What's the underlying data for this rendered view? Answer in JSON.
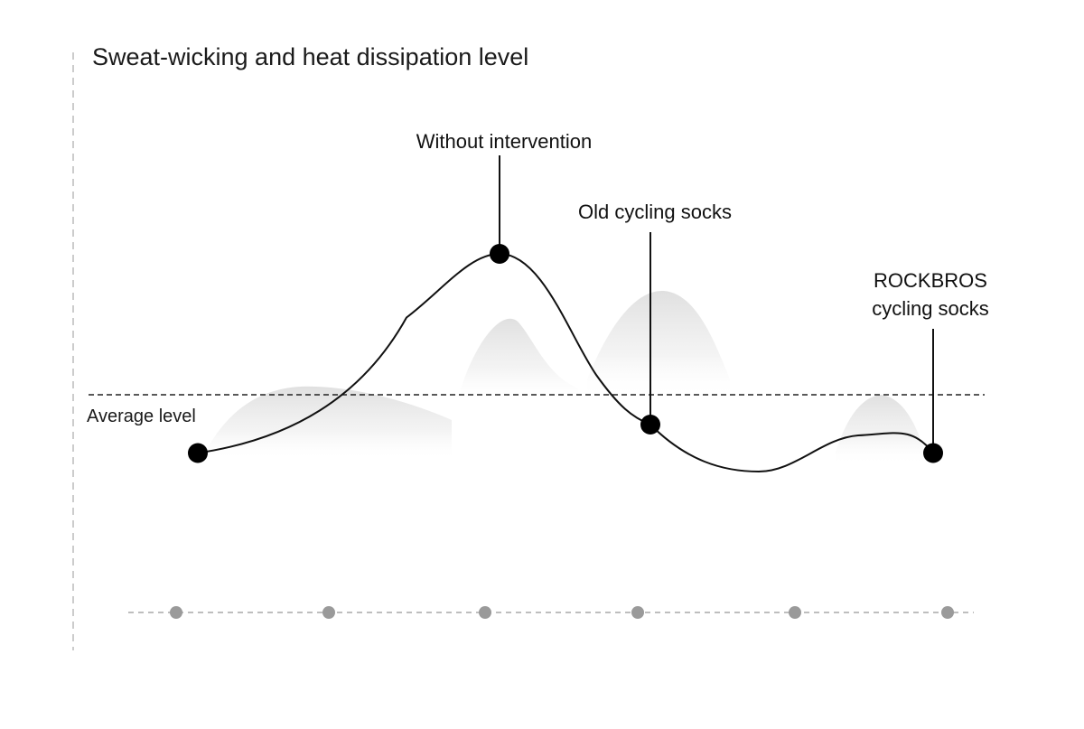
{
  "chart_data": {
    "type": "line",
    "title": "Sweat-wicking and heat dissipation level",
    "reference_line": {
      "label": "Average level",
      "style": "dashed"
    },
    "series": [
      {
        "values": [
          0.33,
          0.82,
          0.4,
          0.33
        ]
      }
    ],
    "annotations": [
      {
        "point": 1,
        "lines": [
          "Without intervention"
        ]
      },
      {
        "point": 2,
        "lines": [
          "Old cycling socks"
        ]
      },
      {
        "point": 3,
        "lines": [
          "ROCKBROS",
          "cycling socks"
        ]
      }
    ],
    "x_axis": {
      "style": "dashed",
      "tick_count": 6,
      "tick_color": "#9a9a9a"
    },
    "y_axis": {
      "style": "dashed",
      "color": "#bbbbbb"
    },
    "grid": false,
    "legend": "none",
    "colors": {
      "line": "#111111",
      "markers": "#000000",
      "fog": "#e4e4e4"
    }
  }
}
